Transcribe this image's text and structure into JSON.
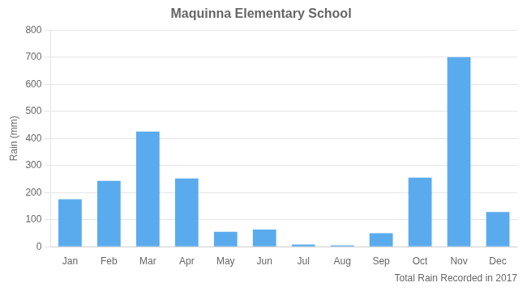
{
  "chart_data": {
    "type": "bar",
    "title": "Maquinna Elementary School",
    "xlabel": "Total Rain Recorded in 2017",
    "ylabel": "Rain (mm)",
    "categories": [
      "Jan",
      "Feb",
      "Mar",
      "Apr",
      "May",
      "Jun",
      "Jul",
      "Aug",
      "Sep",
      "Oct",
      "Nov",
      "Dec"
    ],
    "values": [
      175,
      243,
      425,
      252,
      55,
      63,
      8,
      5,
      50,
      255,
      700,
      128
    ],
    "color": "#5aabee",
    "ylim": [
      0,
      800
    ],
    "yticks": [
      0,
      100,
      200,
      300,
      400,
      500,
      600,
      700,
      800
    ],
    "grid": true
  }
}
